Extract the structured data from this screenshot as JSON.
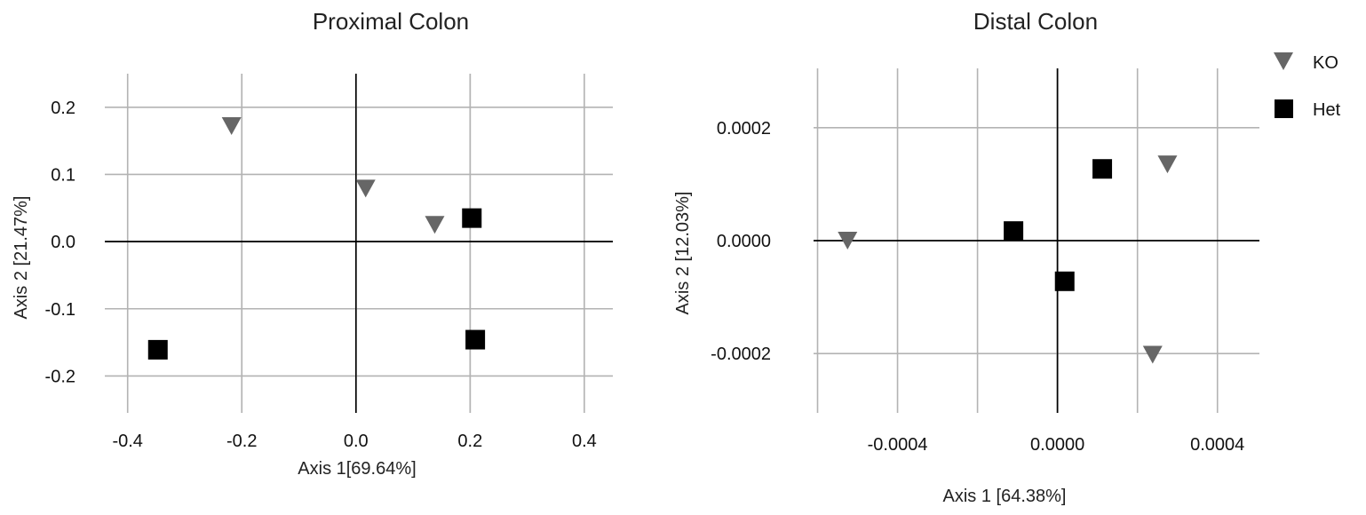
{
  "legend": {
    "entries": [
      {
        "label": "KO",
        "shape": "triangle-down",
        "color": "#666666"
      },
      {
        "label": "Het",
        "shape": "square",
        "color": "#000000"
      }
    ]
  },
  "chart_data": [
    {
      "type": "scatter",
      "title": "Proximal Colon",
      "xlabel": "Axis 1[69.64%]",
      "ylabel": "Axis 2 [21.47%]",
      "xlim": [
        -0.44,
        0.45
      ],
      "ylim": [
        -0.255,
        0.25
      ],
      "x_ticks": [
        -0.4,
        -0.2,
        0.0,
        0.2,
        0.4
      ],
      "x_tick_labels": [
        "-0.4",
        "-0.2",
        "0.0",
        "0.2",
        "0.4"
      ],
      "x_minor_grid": [
        -0.2,
        0.2
      ],
      "y_ticks": [
        -0.2,
        -0.1,
        0.0,
        0.1,
        0.2
      ],
      "y_tick_labels": [
        "-0.2",
        "-0.1",
        "0.0",
        "0.1",
        "0.2"
      ],
      "grid": true,
      "zero_lines": true,
      "series": [
        {
          "name": "KO",
          "points": [
            {
              "x": -0.218,
              "y": 0.172
            },
            {
              "x": 0.017,
              "y": 0.079
            },
            {
              "x": 0.138,
              "y": 0.025
            }
          ]
        },
        {
          "name": "Het",
          "points": [
            {
              "x": 0.203,
              "y": 0.035
            },
            {
              "x": 0.209,
              "y": -0.146
            },
            {
              "x": -0.347,
              "y": -0.161
            }
          ]
        }
      ]
    },
    {
      "type": "scatter",
      "title": "Distal Colon",
      "xlabel": "Axis 1 [64.38%]",
      "ylabel": "Axis 2 [12.03%]",
      "xlim": [
        -0.00061,
        0.000505
      ],
      "ylim": [
        -0.000305,
        0.000305
      ],
      "x_ticks": [
        -0.0004,
        0.0,
        0.0004
      ],
      "x_tick_labels": [
        "-0.0004",
        "0.0000",
        "0.0004"
      ],
      "x_minor_grid": [
        -0.0006,
        -0.0002,
        0.0002
      ],
      "y_ticks": [
        -0.0002,
        0.0,
        0.0002
      ],
      "y_tick_labels": [
        "-0.0002",
        "0.0000",
        "0.0002"
      ],
      "grid": true,
      "zero_lines": true,
      "series": [
        {
          "name": "KO",
          "points": [
            {
              "x": -0.000525,
              "y": 0.0
            },
            {
              "x": 0.000275,
              "y": 0.000135
            },
            {
              "x": 0.000238,
              "y": -0.000202
            }
          ]
        },
        {
          "name": "Het",
          "points": [
            {
              "x": 0.000112,
              "y": 0.000127
            },
            {
              "x": -0.00011,
              "y": 1.7e-05
            },
            {
              "x": 1.8e-05,
              "y": -7.2e-05
            }
          ]
        }
      ]
    }
  ]
}
